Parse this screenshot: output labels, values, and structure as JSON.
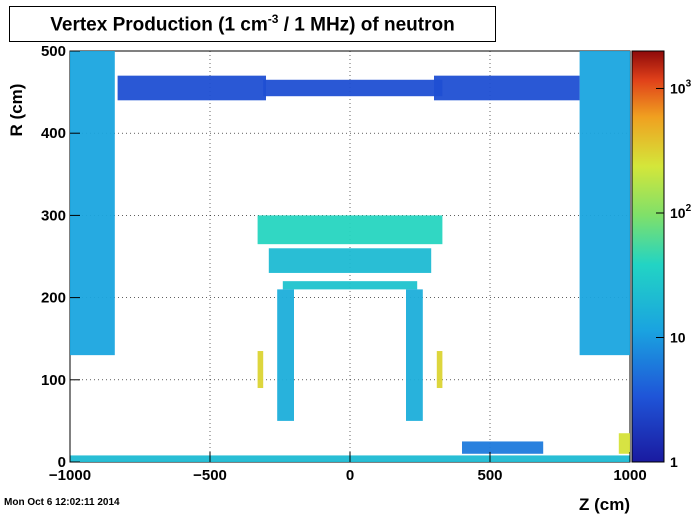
{
  "chart_data": {
    "type": "heatmap",
    "title": {
      "prefix": "Vertex Production (1 cm",
      "superscript": "-3",
      "suffix": " / 1 MHz) of   neutron"
    },
    "xlabel": "Z (cm)",
    "ylabel": "R (cm)",
    "xlim": [
      -1000,
      1000
    ],
    "ylim": [
      0,
      500
    ],
    "x_ticks": [
      -1000,
      -500,
      0,
      500,
      1000
    ],
    "x_tick_labels": [
      "−1000",
      "−500",
      "0",
      "500",
      "1000"
    ],
    "y_ticks": [
      0,
      100,
      200,
      300,
      400,
      500
    ],
    "y_tick_labels": [
      "0",
      "100",
      "200",
      "300",
      "400",
      "500"
    ],
    "colorbar": {
      "scale": "log",
      "range": [
        1,
        2000
      ],
      "labels": [
        "1",
        "10",
        "10",
        "10"
      ],
      "label_exponents": [
        "",
        "",
        "2",
        "3"
      ],
      "label_values": [
        1,
        10,
        100,
        1000
      ]
    },
    "grid": true,
    "regions": [
      {
        "name": "endcap-shield-left",
        "z": [
          -1000,
          -840
        ],
        "r": [
          130,
          500
        ],
        "level": 12
      },
      {
        "name": "endcap-shield-right",
        "z": [
          820,
          1000
        ],
        "r": [
          130,
          500
        ],
        "level": 12
      },
      {
        "name": "top-band-left",
        "z": [
          -830,
          -300
        ],
        "r": [
          440,
          470
        ],
        "level": 3
      },
      {
        "name": "top-band-center",
        "z": [
          -310,
          330
        ],
        "r": [
          445,
          465
        ],
        "level": 3
      },
      {
        "name": "top-band-right",
        "z": [
          300,
          820
        ],
        "r": [
          440,
          470
        ],
        "level": 3
      },
      {
        "name": "calorimeter-barrel",
        "z": [
          -330,
          330
        ],
        "r": [
          265,
          300
        ],
        "level": 40
      },
      {
        "name": "calorimeter-sliver",
        "z": [
          -290,
          290
        ],
        "r": [
          230,
          260
        ],
        "level": 20
      },
      {
        "name": "tracker-ring",
        "z": [
          -240,
          240
        ],
        "r": [
          210,
          220
        ],
        "level": 25
      },
      {
        "name": "inner-side-left",
        "z": [
          -260,
          -200
        ],
        "r": [
          50,
          210
        ],
        "level": 15
      },
      {
        "name": "inner-side-right",
        "z": [
          200,
          260
        ],
        "r": [
          50,
          210
        ],
        "level": 15
      },
      {
        "name": "hot-spot-left",
        "z": [
          -330,
          -310
        ],
        "r": [
          90,
          135
        ],
        "level": 300
      },
      {
        "name": "hot-spot-right",
        "z": [
          310,
          330
        ],
        "r": [
          90,
          135
        ],
        "level": 300
      },
      {
        "name": "hot-spot-corner",
        "z": [
          960,
          1000
        ],
        "r": [
          10,
          35
        ],
        "level": 250
      },
      {
        "name": "beam-floor",
        "z": [
          -1000,
          1000
        ],
        "r": [
          0,
          8
        ],
        "level": 20
      },
      {
        "name": "forward-strip",
        "z": [
          400,
          690
        ],
        "r": [
          10,
          25
        ],
        "level": 6
      }
    ]
  },
  "footer": {
    "timestamp": "Mon Oct  6 12:02:11 2014"
  }
}
